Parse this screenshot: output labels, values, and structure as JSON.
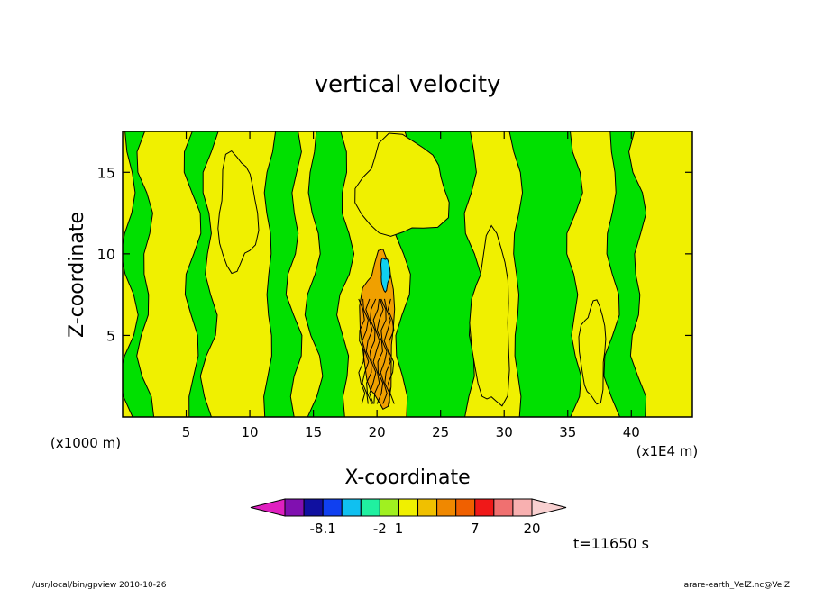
{
  "chart_data": {
    "type": "heatmap",
    "title": "vertical velocity",
    "xlabel": "X-coordinate",
    "ylabel": "Z-coordinate",
    "x_units_left": "(x1000 m)",
    "x_units_right": "(x1E4 m)",
    "x_ticks": [
      "5",
      "10",
      "15",
      "20",
      "25",
      "30",
      "35",
      "40"
    ],
    "x_tick_values": [
      5,
      10,
      15,
      20,
      25,
      30,
      35,
      40
    ],
    "y_ticks": [
      "5",
      "10",
      "15"
    ],
    "y_tick_values": [
      5,
      10,
      15
    ],
    "xlim": [
      0,
      44.8
    ],
    "ylim": [
      0,
      17.5
    ],
    "time_label": "t=11650 s",
    "colorbar": {
      "colors": [
        "#e020c0",
        "#8010b0",
        "#1010a0",
        "#1040f0",
        "#10c0f0",
        "#20f0a0",
        "#a0f020",
        "#f0f000",
        "#f0c000",
        "#f08800",
        "#f06000",
        "#f01818",
        "#f07070",
        "#f8b0b0",
        "#f8d0d0"
      ],
      "labels": [
        {
          "text": "-8.1",
          "index": 2
        },
        {
          "text": "-2",
          "index": 5
        },
        {
          "text": "1",
          "index": 6
        },
        {
          "text": "7",
          "index": 10
        },
        {
          "text": "20",
          "index": 13
        }
      ]
    },
    "field_colors": {
      "positive": "#f0f000",
      "negative": "#00e000",
      "updraft": "#f0a000",
      "downdraft": "#10d0f0"
    },
    "regions": {
      "green_bands": [
        {
          "x": [
            0.5,
            1.8
          ],
          "z": [
            0,
            17.5
          ]
        },
        {
          "x": [
            5.5,
            6.8
          ],
          "z": [
            0,
            17.5
          ]
        },
        {
          "x": [
            11.5,
            13.5
          ],
          "z": [
            0,
            17.5
          ]
        },
        {
          "x": [
            15.0,
            17.5
          ],
          "z": [
            0,
            17.5
          ]
        },
        {
          "x": [
            22.0,
            27.5
          ],
          "z": [
            0,
            17.5
          ]
        },
        {
          "x": [
            31.0,
            35.5
          ],
          "z": [
            0,
            17.5
          ]
        },
        {
          "x": [
            38.5,
            40.5
          ],
          "z": [
            0,
            17.5
          ]
        }
      ],
      "yellow_blobs": [
        {
          "x": [
            7.5,
            10.5
          ],
          "z": [
            9,
            16
          ]
        },
        {
          "x": [
            18.5,
            25.5
          ],
          "z": [
            11,
            17
          ]
        },
        {
          "x": [
            27.5,
            30.5
          ],
          "z": [
            0.5,
            11
          ]
        },
        {
          "x": [
            36.0,
            38.0
          ],
          "z": [
            1,
            7
          ]
        }
      ],
      "updraft": {
        "x": [
          18.8,
          21.4
        ],
        "z": [
          0.8,
          10.0
        ]
      },
      "downdraft": {
        "x": [
          20.3,
          21.0
        ],
        "z": [
          7.8,
          9.8
        ]
      }
    }
  },
  "footer": {
    "left": "/usr/local/bin/gpview   2010-10-26",
    "right": "arare-earth_VelZ.nc@VelZ"
  }
}
